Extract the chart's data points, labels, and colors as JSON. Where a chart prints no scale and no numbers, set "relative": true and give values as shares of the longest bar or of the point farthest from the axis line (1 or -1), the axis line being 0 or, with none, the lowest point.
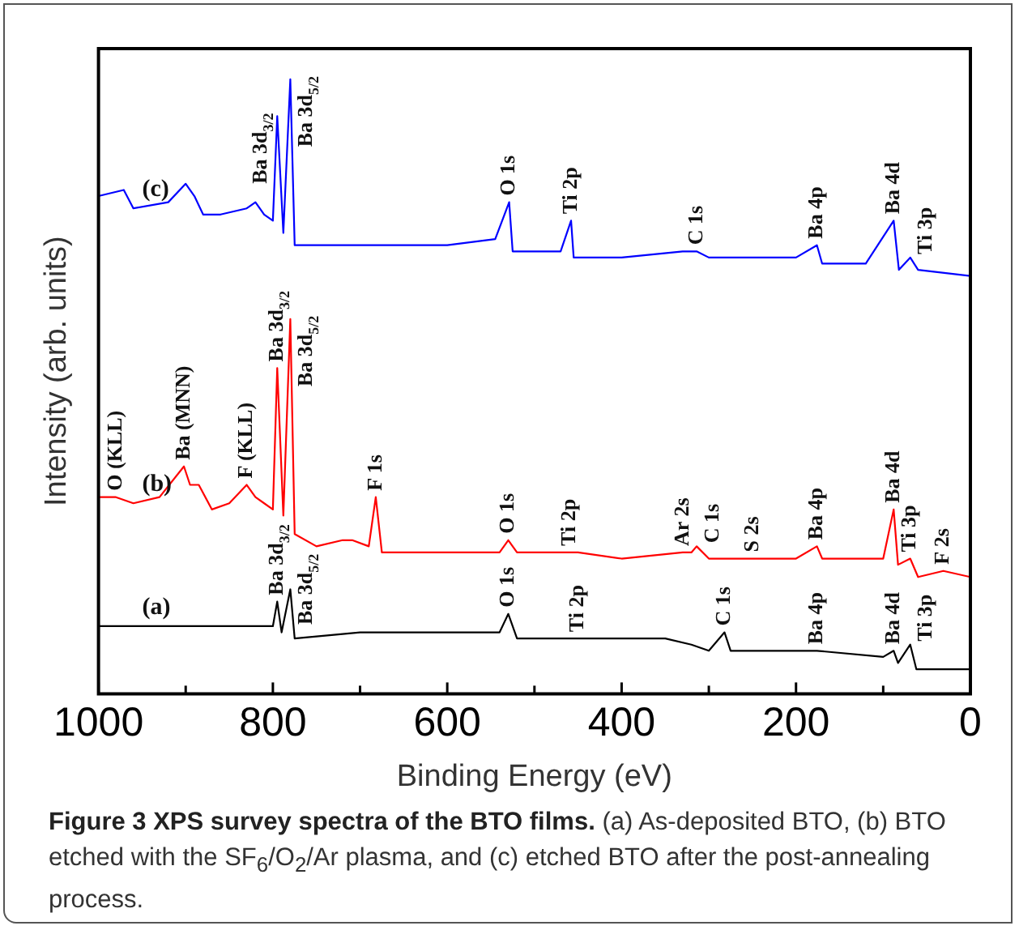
{
  "chart_data": {
    "type": "line",
    "relative": true,
    "title": "Figure 3 XPS survey spectra of the BTO films.",
    "xlabel": "Binding Energy (eV)",
    "ylabel": "Intensity (arb. units)",
    "xlim": [
      1000,
      0
    ],
    "xticks": [
      1000,
      {
        "value": 900,
        "label": null
      },
      800,
      {
        "value": 700,
        "label": null
      },
      600,
      {
        "value": 500,
        "label": null
      },
      400,
      {
        "value": 300,
        "label": null
      },
      200,
      {
        "value": 100,
        "label": null
      },
      0
    ],
    "grid": false,
    "legend": false,
    "marker": "none",
    "line_style": "solid",
    "series": [
      {
        "name": "(a)",
        "color": "#000000",
        "x": [
          1000,
          950,
          900,
          850,
          800,
          795,
          790,
          780,
          775,
          700,
          600,
          540,
          530,
          520,
          450,
          350,
          320,
          300,
          282,
          275,
          200,
          176,
          100,
          88,
          83,
          69,
          62,
          0
        ],
        "values": [
          0.11,
          0.11,
          0.11,
          0.11,
          0.11,
          0.15,
          0.1,
          0.17,
          0.09,
          0.1,
          0.1,
          0.1,
          0.13,
          0.09,
          0.09,
          0.09,
          0.08,
          0.07,
          0.1,
          0.07,
          0.07,
          0.07,
          0.06,
          0.07,
          0.05,
          0.08,
          0.04,
          0.04
        ]
      },
      {
        "name": "(b)",
        "color": "#ff0000",
        "x": [
          1000,
          980,
          960,
          930,
          902,
          895,
          885,
          870,
          850,
          830,
          820,
          810,
          800,
          795,
          788,
          780,
          775,
          750,
          720,
          709,
          690,
          682,
          675,
          600,
          540,
          530,
          520,
          460,
          450,
          400,
          330,
          320,
          314,
          300,
          250,
          200,
          176,
          170,
          100,
          88,
          83,
          69,
          60,
          31,
          0
        ],
        "values": [
          0.32,
          0.32,
          0.31,
          0.32,
          0.37,
          0.34,
          0.34,
          0.3,
          0.31,
          0.34,
          0.32,
          0.31,
          0.3,
          0.53,
          0.29,
          0.61,
          0.26,
          0.24,
          0.25,
          0.25,
          0.24,
          0.32,
          0.23,
          0.23,
          0.23,
          0.25,
          0.23,
          0.23,
          0.23,
          0.22,
          0.23,
          0.23,
          0.24,
          0.22,
          0.22,
          0.22,
          0.24,
          0.22,
          0.22,
          0.3,
          0.21,
          0.22,
          0.19,
          0.2,
          0.19
        ]
      },
      {
        "name": "(c)",
        "color": "#0000ff",
        "x": [
          1000,
          971,
          960,
          920,
          900,
          890,
          880,
          860,
          830,
          820,
          810,
          800,
          795,
          788,
          780,
          775,
          700,
          600,
          545,
          529,
          525,
          470,
          458,
          455,
          400,
          330,
          314,
          300,
          250,
          200,
          176,
          170,
          120,
          88,
          82,
          69,
          60,
          0
        ],
        "values": [
          0.81,
          0.82,
          0.79,
          0.8,
          0.83,
          0.81,
          0.78,
          0.78,
          0.79,
          0.8,
          0.78,
          0.77,
          0.94,
          0.75,
          1.0,
          0.73,
          0.73,
          0.73,
          0.74,
          0.8,
          0.72,
          0.72,
          0.77,
          0.71,
          0.71,
          0.72,
          0.72,
          0.71,
          0.71,
          0.71,
          0.73,
          0.7,
          0.7,
          0.77,
          0.69,
          0.71,
          0.69,
          0.68
        ]
      }
    ],
    "annotations": [
      {
        "text": "Ba 3d$_{3/2}$",
        "x": 795,
        "y": 0.94
      },
      {
        "text": "Ba 3d$_{5/2}$",
        "x": 780,
        "y": 1.0
      },
      {
        "text": "O 1s",
        "x": 529,
        "y": 0.8
      },
      {
        "text": "Ti 2p",
        "x": 458,
        "y": 0.77
      },
      {
        "text": "C 1s",
        "x": 314,
        "y": 0.72
      },
      {
        "text": "Ba 4p",
        "x": 176,
        "y": 0.73
      },
      {
        "text": "Ba 4d",
        "x": 88,
        "y": 0.77
      },
      {
        "text": "Ti 3p",
        "x": 69,
        "y": 0.71
      },
      {
        "text": "O (KLL)",
        "x": 980,
        "y": 0.32
      },
      {
        "text": "Ba (MNN)",
        "x": 902,
        "y": 0.37
      },
      {
        "text": "F (KLL)",
        "x": 830,
        "y": 0.34
      },
      {
        "text": "Ba 3d$_{3/2}$",
        "x": 795,
        "y": 0.53
      },
      {
        "text": "Ba 3d$_{5/2}$",
        "x": 780,
        "y": 0.61
      },
      {
        "text": "F 1s",
        "x": 682,
        "y": 0.32
      },
      {
        "text": "O 1s",
        "x": 530,
        "y": 0.25
      },
      {
        "text": "Ti 2p",
        "x": 460,
        "y": 0.23
      },
      {
        "text": "Ar 2s",
        "x": 330,
        "y": 0.23
      },
      {
        "text": "C 1s",
        "x": 314,
        "y": 0.24
      },
      {
        "text": "S 2s",
        "x": 250,
        "y": 0.22
      },
      {
        "text": "Ba 4p",
        "x": 176,
        "y": 0.24
      },
      {
        "text": "Ba 4d",
        "x": 88,
        "y": 0.3
      },
      {
        "text": "Ti 3p",
        "x": 69,
        "y": 0.22
      },
      {
        "text": "F 2s",
        "x": 31,
        "y": 0.2
      },
      {
        "text": "Ba 3d$_{3/2}$",
        "x": 795,
        "y": 0.15
      },
      {
        "text": "Ba 3d$_{5/2}$",
        "x": 780,
        "y": 0.17
      },
      {
        "text": "O 1s",
        "x": 530,
        "y": 0.13
      },
      {
        "text": "Ti 2p",
        "x": 450,
        "y": 0.09
      },
      {
        "text": "C 1s",
        "x": 282,
        "y": 0.1
      },
      {
        "text": "Ba 4p",
        "x": 176,
        "y": 0.07
      },
      {
        "text": "Ba 4d",
        "x": 88,
        "y": 0.07
      },
      {
        "text": "Ti 3p",
        "x": 69,
        "y": 0.08
      },
      "(a) As-deposited BTO, (b) BTO etched with the SF$_{6}$/O$_{2}$/Ar plasma, and (c) etched BTO after the post-annealing process."
    ]
  }
}
